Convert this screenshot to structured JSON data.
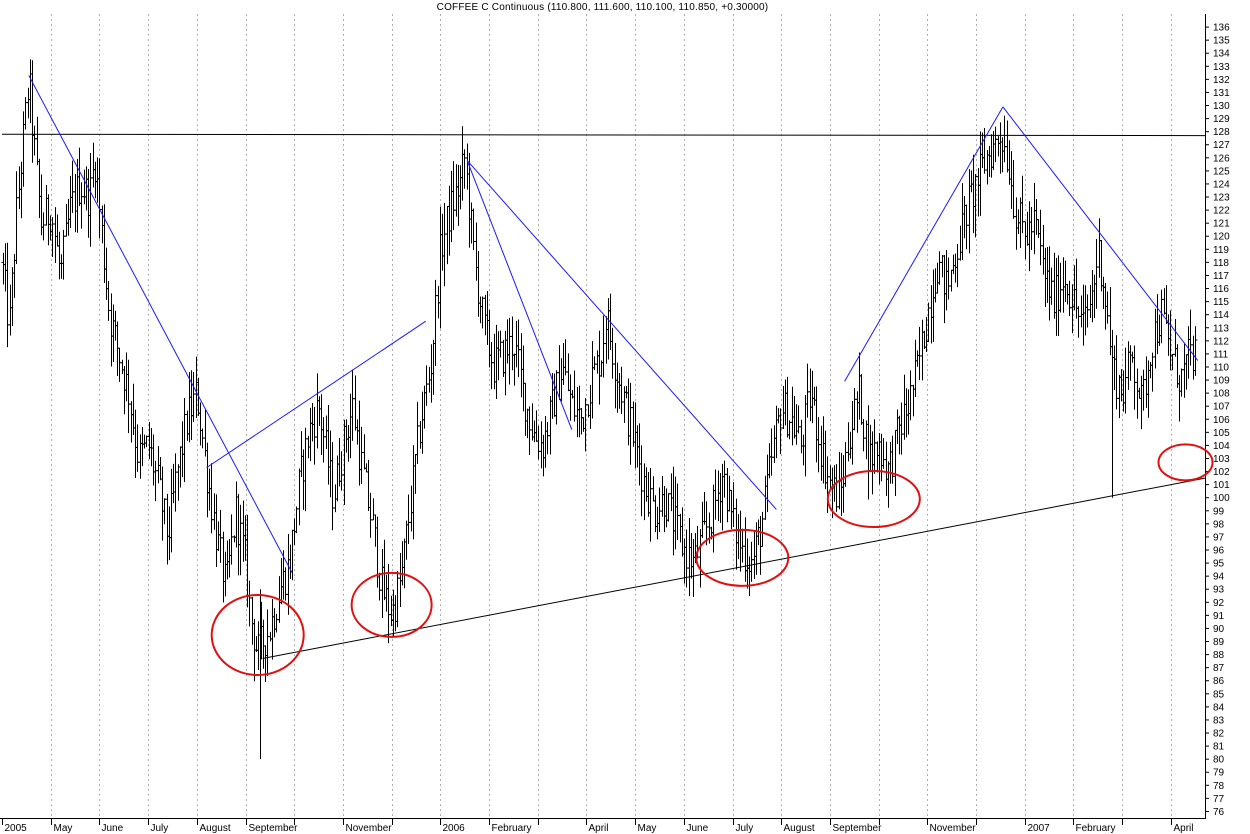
{
  "chart_data": {
    "type": "bar",
    "title": "COFFEE C Continuous (110.800, 111.600, 110.100, 110.850, +0.30000)",
    "xlabel": "",
    "ylabel": "",
    "ylim": [
      75.5,
      137
    ],
    "y_ticks": [
      76,
      77,
      78,
      79,
      80,
      81,
      82,
      83,
      84,
      85,
      86,
      87,
      88,
      89,
      90,
      91,
      92,
      93,
      94,
      95,
      96,
      97,
      98,
      99,
      100,
      101,
      102,
      103,
      104,
      105,
      106,
      107,
      108,
      109,
      110,
      111,
      112,
      113,
      114,
      115,
      116,
      117,
      118,
      119,
      120,
      121,
      122,
      123,
      124,
      125,
      126,
      127,
      128,
      129,
      130,
      131,
      132,
      133,
      134,
      135,
      136
    ],
    "grid": "vertical dashed at month starts",
    "x_months": [
      {
        "label": "2005",
        "t": 0
      },
      {
        "label": "May",
        "t": 1
      },
      {
        "label": "June",
        "t": 2
      },
      {
        "label": "July",
        "t": 3
      },
      {
        "label": "August",
        "t": 4
      },
      {
        "label": "September",
        "t": 5
      },
      {
        "label": "",
        "t": 6
      },
      {
        "label": "November",
        "t": 7
      },
      {
        "label": "",
        "t": 8
      },
      {
        "label": "2006",
        "t": 9
      },
      {
        "label": "February",
        "t": 10
      },
      {
        "label": "",
        "t": 11
      },
      {
        "label": "April",
        "t": 12
      },
      {
        "label": "May",
        "t": 13
      },
      {
        "label": "June",
        "t": 14
      },
      {
        "label": "July",
        "t": 15
      },
      {
        "label": "August",
        "t": 16
      },
      {
        "label": "September",
        "t": 17
      },
      {
        "label": "",
        "t": 18
      },
      {
        "label": "November",
        "t": 19
      },
      {
        "label": "",
        "t": 20
      },
      {
        "label": "2007",
        "t": 21
      },
      {
        "label": "February",
        "t": 22
      },
      {
        "label": "",
        "t": 23
      },
      {
        "label": "April",
        "t": 24
      }
    ],
    "t_end": 24.7,
    "price_path": [
      [
        0,
        118
      ],
      [
        0.15,
        113
      ],
      [
        0.3,
        122
      ],
      [
        0.4,
        126
      ],
      [
        0.5,
        130
      ],
      [
        0.55,
        132
      ],
      [
        0.65,
        127
      ],
      [
        0.8,
        121
      ],
      [
        1.0,
        122
      ],
      [
        1.2,
        117
      ],
      [
        1.4,
        122
      ],
      [
        1.6,
        124
      ],
      [
        1.8,
        123
      ],
      [
        1.9,
        126
      ],
      [
        2.0,
        122
      ],
      [
        2.1,
        118
      ],
      [
        2.2,
        114
      ],
      [
        2.4,
        111
      ],
      [
        2.6,
        108
      ],
      [
        2.8,
        103
      ],
      [
        3.0,
        104
      ],
      [
        3.2,
        101
      ],
      [
        3.4,
        97
      ],
      [
        3.6,
        102
      ],
      [
        3.8,
        106
      ],
      [
        4.0,
        108
      ],
      [
        4.2,
        102
      ],
      [
        4.4,
        97
      ],
      [
        4.6,
        93
      ],
      [
        4.8,
        99
      ],
      [
        5.0,
        95
      ],
      [
        5.1,
        91
      ],
      [
        5.25,
        88
      ],
      [
        5.35,
        89
      ],
      [
        5.5,
        90
      ],
      [
        5.7,
        93
      ],
      [
        5.9,
        95
      ],
      [
        6.1,
        101
      ],
      [
        6.3,
        105
      ],
      [
        6.5,
        107
      ],
      [
        6.8,
        100
      ],
      [
        7.0,
        104
      ],
      [
        7.2,
        107
      ],
      [
        7.4,
        102
      ],
      [
        7.6,
        98
      ],
      [
        7.8,
        93
      ],
      [
        8.0,
        91
      ],
      [
        8.2,
        94
      ],
      [
        8.4,
        100
      ],
      [
        8.6,
        106
      ],
      [
        8.8,
        110
      ],
      [
        9.0,
        119
      ],
      [
        9.2,
        122
      ],
      [
        9.4,
        124
      ],
      [
        9.5,
        126
      ],
      [
        9.7,
        118
      ],
      [
        9.9,
        113
      ],
      [
        10.1,
        110
      ],
      [
        10.3,
        111
      ],
      [
        10.5,
        112
      ],
      [
        10.7,
        108
      ],
      [
        10.9,
        105
      ],
      [
        11.1,
        104
      ],
      [
        11.3,
        107
      ],
      [
        11.5,
        110
      ],
      [
        11.7,
        107
      ],
      [
        11.9,
        106
      ],
      [
        12.1,
        109
      ],
      [
        12.3,
        111
      ],
      [
        12.4,
        114
      ],
      [
        12.6,
        110
      ],
      [
        12.8,
        107
      ],
      [
        13.0,
        104
      ],
      [
        13.2,
        101
      ],
      [
        13.4,
        99
      ],
      [
        13.6,
        100
      ],
      [
        13.8,
        98
      ],
      [
        14.0,
        96
      ],
      [
        14.2,
        95
      ],
      [
        14.4,
        97
      ],
      [
        14.6,
        99
      ],
      [
        14.8,
        102
      ],
      [
        15.0,
        98
      ],
      [
        15.2,
        96
      ],
      [
        15.4,
        95
      ],
      [
        15.6,
        98
      ],
      [
        15.8,
        103
      ],
      [
        16.0,
        107
      ],
      [
        16.2,
        106
      ],
      [
        16.4,
        104
      ],
      [
        16.6,
        108
      ],
      [
        16.8,
        104
      ],
      [
        17.0,
        101
      ],
      [
        17.2,
        100
      ],
      [
        17.4,
        105
      ],
      [
        17.6,
        108
      ],
      [
        17.8,
        103
      ],
      [
        18.0,
        104
      ],
      [
        18.2,
        102
      ],
      [
        18.4,
        105
      ],
      [
        18.6,
        107
      ],
      [
        18.8,
        110
      ],
      [
        19.0,
        114
      ],
      [
        19.2,
        118
      ],
      [
        19.4,
        116
      ],
      [
        19.6,
        119
      ],
      [
        19.8,
        122
      ],
      [
        20.0,
        124
      ],
      [
        20.2,
        126
      ],
      [
        20.4,
        127
      ],
      [
        20.5,
        128
      ],
      [
        20.65,
        126
      ],
      [
        20.8,
        122
      ],
      [
        21.0,
        120
      ],
      [
        21.2,
        121
      ],
      [
        21.4,
        117
      ],
      [
        21.6,
        115
      ],
      [
        21.8,
        117
      ],
      [
        22.0,
        115
      ],
      [
        22.2,
        113
      ],
      [
        22.4,
        116
      ],
      [
        22.5,
        119
      ],
      [
        22.6,
        117
      ],
      [
        22.8,
        110
      ],
      [
        23.0,
        108
      ],
      [
        23.2,
        111
      ],
      [
        23.4,
        107
      ],
      [
        23.6,
        112
      ],
      [
        23.8,
        114
      ],
      [
        24.0,
        111
      ],
      [
        24.2,
        109
      ],
      [
        24.4,
        111
      ],
      [
        24.5,
        110.85
      ]
    ],
    "trend_lines_blue": [
      [
        [
          0.55,
          132.3
        ],
        [
          5.95,
          94.3
        ]
      ],
      [
        [
          4.2,
          102.3
        ],
        [
          8.7,
          113.5
        ]
      ],
      [
        [
          9.55,
          125.8
        ],
        [
          11.7,
          105.2
        ]
      ],
      [
        [
          9.55,
          125.8
        ],
        [
          15.9,
          99.1
        ]
      ],
      [
        [
          17.3,
          108.9
        ],
        [
          20.55,
          129.9
        ]
      ],
      [
        [
          20.55,
          129.9
        ],
        [
          24.55,
          110.5
        ]
      ]
    ],
    "trend_lines_black": [
      [
        [
          0,
          127.8
        ],
        [
          24.7,
          127.7
        ]
      ],
      [
        [
          5.35,
          87.7
        ],
        [
          24.7,
          101.5
        ]
      ]
    ],
    "circles_red": [
      {
        "t": 5.25,
        "p": 89.5
      },
      {
        "t": 8.0,
        "p": 91.8
      },
      {
        "t": 15.2,
        "p": 95.4
      },
      {
        "t": 17.9,
        "p": 99.9
      },
      {
        "t": 24.3,
        "p": 102.7
      }
    ],
    "colors": {
      "bars": "#000000",
      "trend_blue": "#1a1aff",
      "trend_black": "#000000",
      "circles": "#e01010",
      "grid": "#b0b0b0"
    }
  }
}
